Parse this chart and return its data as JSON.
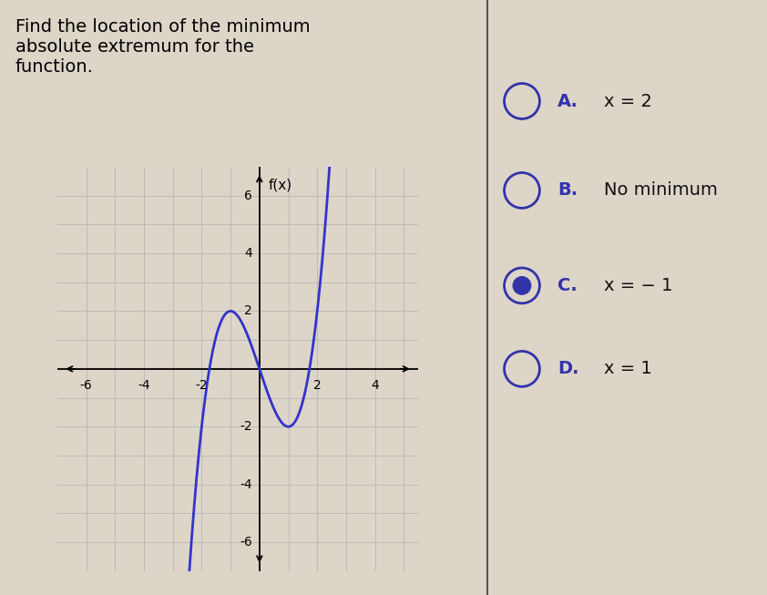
{
  "title_text": "Find the location of the minimum\nabsolute extremum for the\nfunction.",
  "title_fontsize": 14,
  "options": [
    {
      "label": "A.",
      "text": "x = 2",
      "selected": false
    },
    {
      "label": "B.",
      "text": "No minimum",
      "selected": false
    },
    {
      "label": "C.",
      "text": "x = − 1",
      "selected": true
    },
    {
      "label": "D.",
      "text": "x = 1",
      "selected": false
    }
  ],
  "curve_color": "#3333cc",
  "curve_linewidth": 2.0,
  "xlim": [
    -7,
    5.5
  ],
  "ylim": [
    -7,
    7
  ],
  "xticks": [
    -6,
    -4,
    -2,
    2,
    4
  ],
  "yticks": [
    -6,
    -4,
    -2,
    2,
    4,
    6
  ],
  "ylabel": "f(x)",
  "grid_color": "#bbbbbb",
  "grid_linewidth": 0.7,
  "graph_bg": "#f0ece0",
  "page_bg": "#ddd5c8",
  "divider_color": "#555555",
  "option_circle_color": "#3333aa",
  "option_text_color": "#111111",
  "option_label_color": "#3333aa",
  "option_fontsize": 14
}
